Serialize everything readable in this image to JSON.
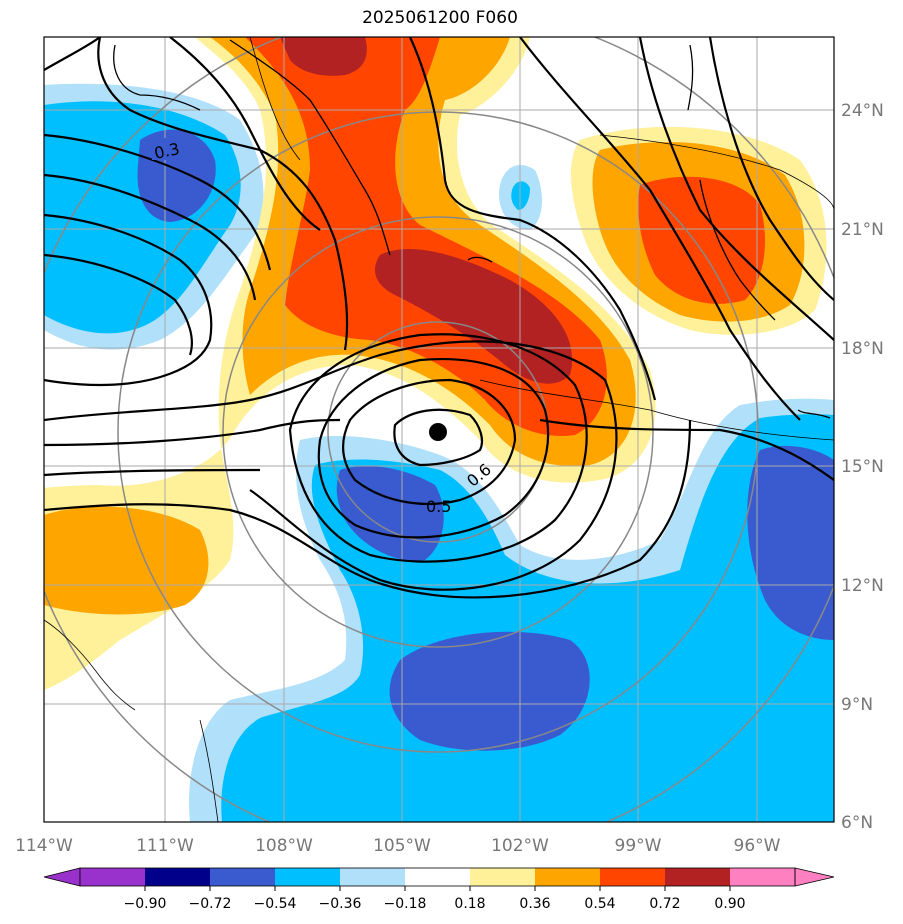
{
  "title": "2025061200 F060",
  "colors": {
    "vneg_extreme": "#9932cc",
    "neg_090": "#00008b",
    "neg_072": "#3a5bcf",
    "neg_054": "#00bfff",
    "neg_036": "#b0e0fa",
    "zero": "#ffffff",
    "pos_018": "#fff09a",
    "pos_036": "#ffa500",
    "pos_054": "#ff4500",
    "pos_072": "#b22222",
    "pos_extreme": "#ff80c0"
  },
  "map": {
    "lon_labels": [
      "114°W",
      "111°W",
      "108°W",
      "105°W",
      "102°W",
      "99°W",
      "96°W"
    ],
    "lat_labels": [
      "24°N",
      "21°N",
      "18°N",
      "15°N",
      "12°N",
      "9°N",
      "6°N"
    ],
    "contour_labels": [
      "0.3",
      "0.6",
      "0.5"
    ],
    "center_marker": "storm-center"
  },
  "colorbar": {
    "tick_labels": [
      "−0.90",
      "−0.72",
      "−0.54",
      "−0.36",
      "−0.18",
      "0.18",
      "0.36",
      "0.54",
      "0.72",
      "0.90"
    ]
  }
}
